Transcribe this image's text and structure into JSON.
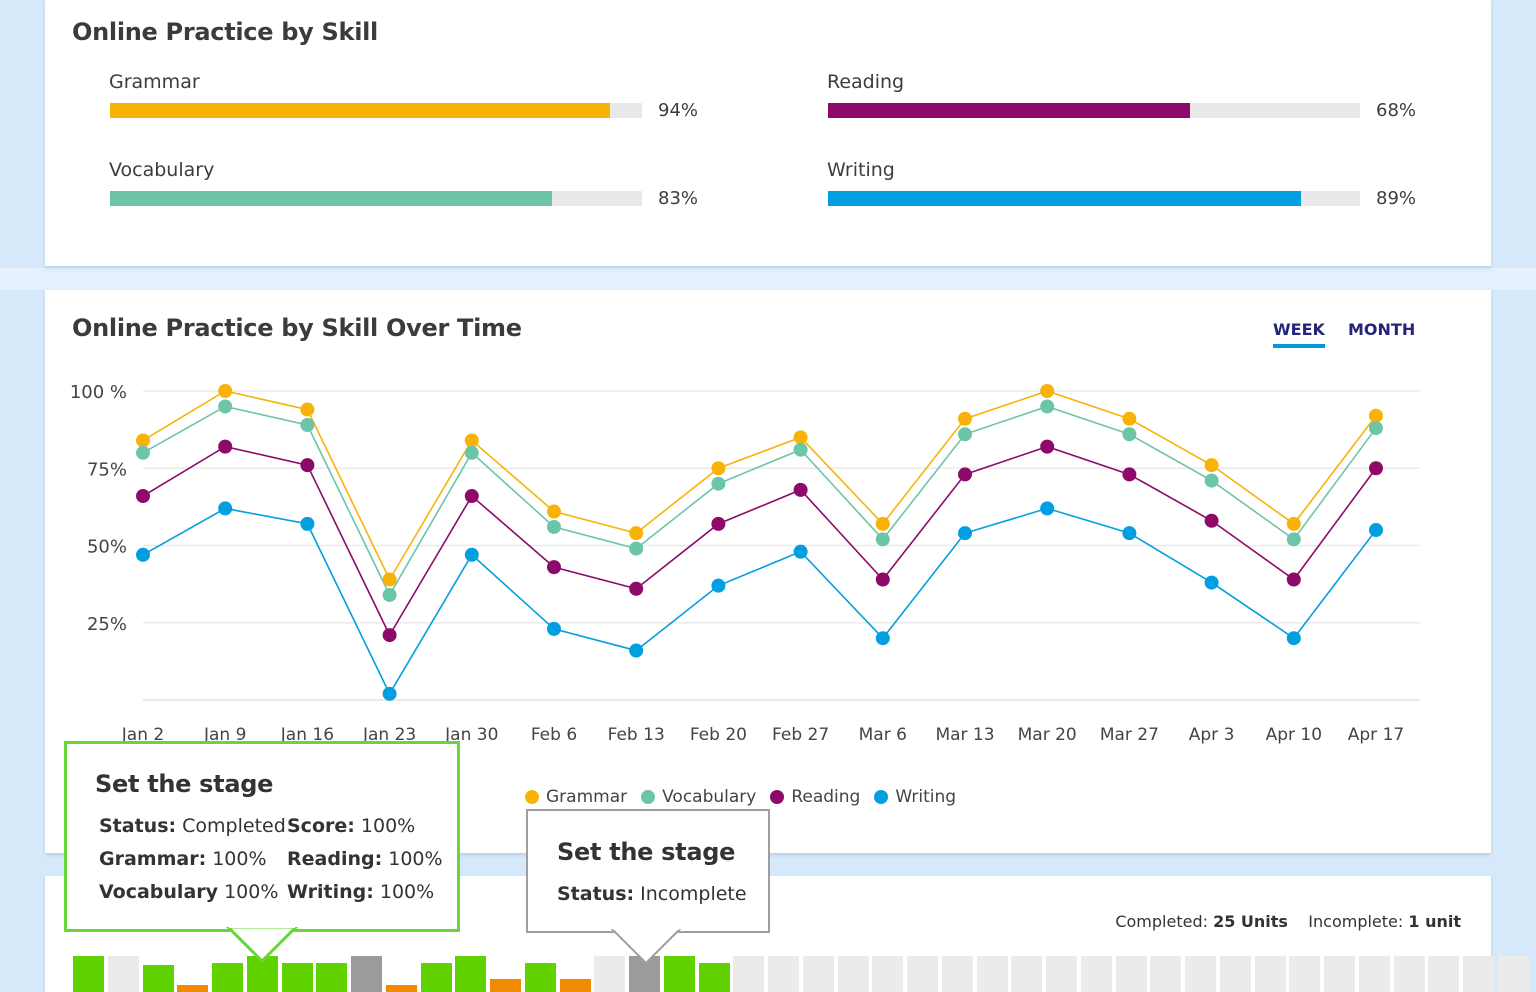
{
  "colors": {
    "grammar": "#f9b308",
    "vocabulary": "#6dc5a9",
    "reading": "#8d0a6a",
    "writing": "#019fe0",
    "tab": "#23257a",
    "tab_underline": "#0099d8",
    "complete": "#5fd200",
    "incomplete": "#9b9b9b",
    "partial": "#f08a00",
    "empty": "#ebebeb",
    "tooltip_green_border": "#67d63a",
    "tooltip_gray_border": "#9e9e9e"
  },
  "skills_card": {
    "title": "Online Practice by Skill",
    "skills": [
      {
        "label": "Grammar",
        "percent": 94,
        "percent_text": "94%",
        "color": "#f9b308"
      },
      {
        "label": "Reading",
        "percent": 68,
        "percent_text": "68%",
        "color": "#8d0a6a"
      },
      {
        "label": "Vocabulary",
        "percent": 83,
        "percent_text": "83%",
        "color": "#6dc5a9"
      },
      {
        "label": "Writing",
        "percent": 89,
        "percent_text": "89%",
        "color": "#019fe0"
      }
    ]
  },
  "time_card": {
    "title": "Online Practice by Skill Over Time",
    "tabs": [
      {
        "label": "WEEK",
        "active": true
      },
      {
        "label": "MONTH",
        "active": false
      }
    ]
  },
  "chart_data": {
    "type": "line",
    "title": "Online Practice by Skill Over Time",
    "xlabel": "",
    "ylabel": "",
    "x": [
      "Jan 2",
      "Jan 9",
      "Jan 16",
      "Jan 23",
      "Jan 30",
      "Feb 6",
      "Feb 13",
      "Feb 20",
      "Feb 27",
      "Mar 6",
      "Mar 13",
      "Mar 20",
      "Mar 27",
      "Apr 3",
      "Apr 10",
      "Apr 17"
    ],
    "y_ticks": [
      {
        "value": 100,
        "label": "100 %"
      },
      {
        "value": 75,
        "label": "75%"
      },
      {
        "value": 50,
        "label": "50%"
      },
      {
        "value": 25,
        "label": "25%"
      }
    ],
    "ylim": [
      0,
      100
    ],
    "grid": true,
    "legend_position": "bottom",
    "series": [
      {
        "name": "Grammar",
        "color": "#f9b308",
        "values": [
          84,
          100,
          94,
          39,
          84,
          61,
          54,
          75,
          85,
          57,
          91,
          100,
          91,
          76,
          57,
          92
        ]
      },
      {
        "name": "Vocabulary",
        "color": "#6dc5a9",
        "values": [
          80,
          95,
          89,
          34,
          80,
          56,
          49,
          70,
          81,
          52,
          86,
          95,
          86,
          71,
          52,
          88
        ]
      },
      {
        "name": "Reading",
        "color": "#8d0a6a",
        "values": [
          66,
          82,
          76,
          21,
          66,
          43,
          36,
          57,
          68,
          39,
          73,
          82,
          73,
          58,
          39,
          75
        ]
      },
      {
        "name": "Writing",
        "color": "#019fe0",
        "values": [
          47,
          62,
          57,
          2,
          47,
          23,
          16,
          37,
          48,
          20,
          54,
          62,
          54,
          38,
          20,
          55
        ]
      }
    ]
  },
  "units": {
    "completed_label": "Completed:",
    "completed_value": "25 Units",
    "incomplete_label": "Incomplete:",
    "incomplete_value": "1 unit",
    "blocks": [
      {
        "status": "complete",
        "level": 1.0
      },
      {
        "status": "empty",
        "level": 1.0
      },
      {
        "status": "complete",
        "level": 0.75
      },
      {
        "status": "partial",
        "level": 0.2
      },
      {
        "status": "complete",
        "level": 0.8
      },
      {
        "status": "complete",
        "level": 1.0
      },
      {
        "status": "complete",
        "level": 0.8
      },
      {
        "status": "complete",
        "level": 0.8
      },
      {
        "status": "incomplete",
        "level": 1.0
      },
      {
        "status": "partial",
        "level": 0.2
      },
      {
        "status": "complete",
        "level": 0.8
      },
      {
        "status": "complete",
        "level": 1.0
      },
      {
        "status": "partial",
        "level": 0.35
      },
      {
        "status": "complete",
        "level": 0.8
      },
      {
        "status": "partial",
        "level": 0.35
      },
      {
        "status": "empty",
        "level": 1.0
      },
      {
        "status": "incomplete",
        "level": 1.0
      },
      {
        "status": "complete",
        "level": 1.0
      },
      {
        "status": "complete",
        "level": 0.8
      },
      {
        "status": "empty",
        "level": 1.0
      },
      {
        "status": "empty",
        "level": 1.0
      },
      {
        "status": "empty",
        "level": 1.0
      },
      {
        "status": "empty",
        "level": 1.0
      },
      {
        "status": "empty",
        "level": 1.0
      },
      {
        "status": "empty",
        "level": 1.0
      },
      {
        "status": "empty",
        "level": 1.0
      },
      {
        "status": "empty",
        "level": 1.0
      },
      {
        "status": "empty",
        "level": 1.0
      },
      {
        "status": "empty",
        "level": 1.0
      },
      {
        "status": "empty",
        "level": 1.0
      },
      {
        "status": "empty",
        "level": 1.0
      },
      {
        "status": "empty",
        "level": 1.0
      },
      {
        "status": "empty",
        "level": 1.0
      },
      {
        "status": "empty",
        "level": 1.0
      },
      {
        "status": "empty",
        "level": 1.0
      },
      {
        "status": "empty",
        "level": 1.0
      },
      {
        "status": "empty",
        "level": 1.0
      },
      {
        "status": "empty",
        "level": 1.0
      },
      {
        "status": "empty",
        "level": 1.0
      },
      {
        "status": "empty",
        "level": 1.0
      },
      {
        "status": "empty",
        "level": 1.0
      },
      {
        "status": "empty",
        "level": 1.0
      }
    ]
  },
  "tooltip_complete": {
    "title": "Set the stage",
    "status_label": "Status:",
    "status_value": "Completed",
    "score_label": "Score:",
    "score_value": "100%",
    "grammar_label": "Grammar:",
    "grammar_value": "100%",
    "reading_label": "Reading:",
    "reading_value": "100%",
    "vocabulary_label": "Vocabulary",
    "vocabulary_value": "100%",
    "writing_label": "Writing:",
    "writing_value": "100%"
  },
  "tooltip_incomplete": {
    "title": "Set the stage",
    "status_label": "Status:",
    "status_value": "Incomplete"
  }
}
